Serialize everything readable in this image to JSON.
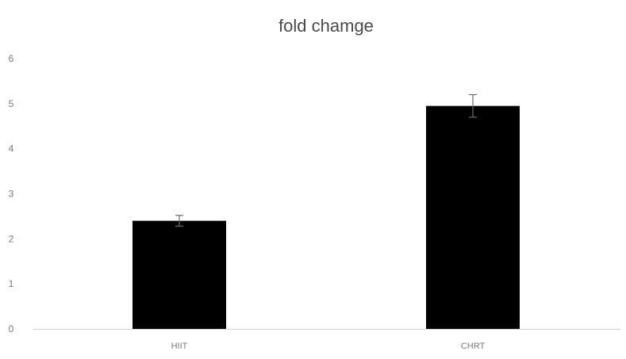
{
  "chart_data": {
    "type": "bar",
    "title": "fold chamge",
    "categories": [
      "HIIT",
      "CHRT"
    ],
    "values": [
      2.4,
      4.95
    ],
    "error": [
      0.12,
      0.25
    ],
    "ylim": [
      0,
      6
    ],
    "yticks": [
      "0",
      "1",
      "2",
      "3",
      "4",
      "5",
      "6"
    ],
    "grid": false,
    "bar_color": "#000000"
  }
}
